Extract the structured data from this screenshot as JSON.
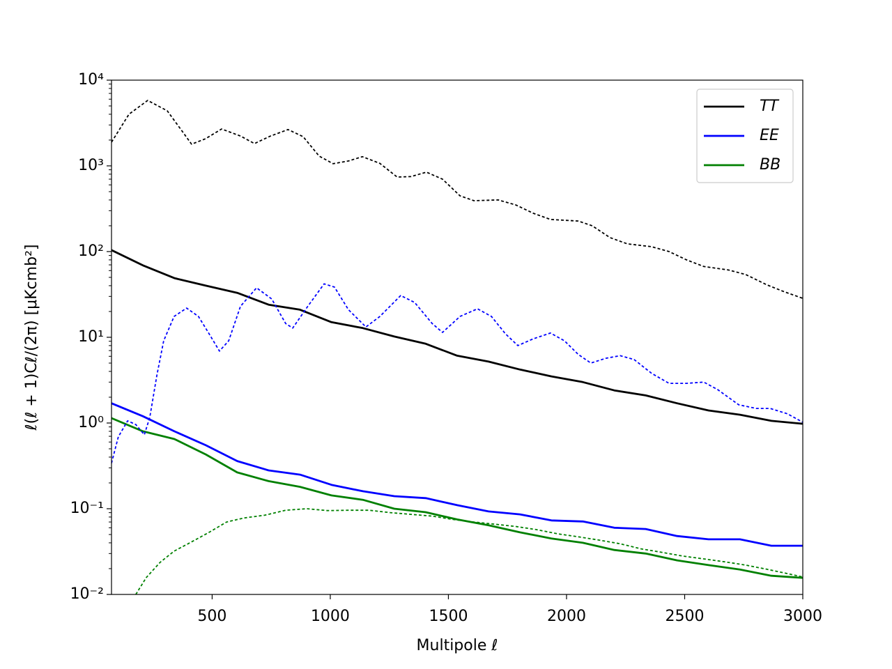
{
  "chart_data": {
    "type": "line",
    "xlabel": "Multipole ℓ",
    "ylabel": "ℓ(ℓ + 1)Cℓ/(2π) [μKcmb²]",
    "xlim": [
      74,
      3000
    ],
    "xticks": [
      500,
      1000,
      1500,
      2000,
      2500,
      3000
    ],
    "ylim": [
      0.01,
      10000
    ],
    "yticks": [
      {
        "value": 0.01,
        "label": "10⁻²"
      },
      {
        "value": 0.1,
        "label": "10⁻¹"
      },
      {
        "value": 1,
        "label": "10⁰"
      },
      {
        "value": 10,
        "label": "10¹"
      },
      {
        "value": 100,
        "label": "10²"
      },
      {
        "value": 1000,
        "label": "10³"
      },
      {
        "value": 10000,
        "label": "10⁴"
      }
    ],
    "log_y": true,
    "legend": "upper right",
    "series": [
      {
        "name": "TT",
        "color": "#000000",
        "linestyle": "solid",
        "x": [
          74,
          207,
          340,
          473,
          606,
          739,
          872,
          1005,
          1138,
          1271,
          1404,
          1537,
          1670,
          1803,
          1936,
          2069,
          2202,
          2335,
          2468,
          2601,
          2734,
          2867,
          3000
        ],
        "values": [
          104,
          69,
          49,
          40,
          33,
          24,
          21,
          15,
          12.8,
          10.2,
          8.4,
          6.1,
          5.2,
          4.2,
          3.5,
          3.0,
          2.4,
          2.1,
          1.7,
          1.4,
          1.25,
          1.06,
          0.98
        ]
      },
      {
        "name": "EE",
        "color": "#0000ff",
        "linestyle": "solid",
        "x": [
          74,
          207,
          340,
          473,
          606,
          739,
          872,
          1005,
          1138,
          1271,
          1404,
          1537,
          1670,
          1803,
          1936,
          2069,
          2202,
          2335,
          2468,
          2601,
          2734,
          2867,
          3000
        ],
        "values": [
          1.7,
          1.2,
          0.8,
          0.55,
          0.36,
          0.28,
          0.25,
          0.19,
          0.16,
          0.14,
          0.133,
          0.11,
          0.093,
          0.086,
          0.073,
          0.071,
          0.06,
          0.058,
          0.048,
          0.044,
          0.044,
          0.037,
          0.037
        ]
      },
      {
        "name": "BB",
        "color": "#008000",
        "linestyle": "solid",
        "x": [
          74,
          207,
          340,
          473,
          606,
          739,
          872,
          1005,
          1138,
          1271,
          1404,
          1537,
          1670,
          1803,
          1936,
          2069,
          2202,
          2335,
          2468,
          2601,
          2734,
          2867,
          3000
        ],
        "values": [
          1.14,
          0.8,
          0.65,
          0.43,
          0.265,
          0.21,
          0.18,
          0.143,
          0.127,
          0.1,
          0.091,
          0.075,
          0.064,
          0.053,
          0.045,
          0.04,
          0.033,
          0.03,
          0.025,
          0.022,
          0.0195,
          0.0165,
          0.0156
        ]
      },
      {
        "color": "#000000",
        "linestyle": "dotted",
        "x": [
          74,
          148,
          227,
          310,
          375,
          413,
          472,
          540,
          620,
          679,
          747,
          821,
          885,
          953,
          1012,
          1077,
          1136,
          1210,
          1283,
          1342,
          1407,
          1475,
          1549,
          1608,
          1711,
          1785,
          1859,
          1932,
          2050,
          2109,
          2183,
          2257,
          2360,
          2434,
          2508,
          2581,
          2685,
          2758,
          2847,
          2921,
          3000
        ],
        "values": [
          1890,
          4000,
          5800,
          4390,
          2500,
          1790,
          2070,
          2690,
          2230,
          1820,
          2230,
          2650,
          2190,
          1300,
          1060,
          1140,
          1280,
          1070,
          740,
          750,
          845,
          700,
          447,
          392,
          400,
          350,
          280,
          237,
          227,
          200,
          146,
          123,
          114,
          100,
          80,
          67,
          61,
          54,
          41,
          34,
          28.5
        ]
      },
      {
        "color": "#0000ff",
        "linestyle": "dotted",
        "x": [
          74,
          103,
          142,
          177,
          213,
          236,
          266,
          295,
          339,
          392,
          442,
          487,
          531,
          570,
          620,
          688,
          752,
          811,
          841,
          900,
          974,
          1018,
          1077,
          1151,
          1210,
          1298,
          1357,
          1431,
          1475,
          1549,
          1623,
          1682,
          1741,
          1794,
          1859,
          1932,
          1991,
          2050,
          2103,
          2168,
          2227,
          2286,
          2360,
          2434,
          2508,
          2581,
          2640,
          2729,
          2803,
          2862,
          2935,
          3000
        ],
        "values": [
          0.34,
          0.69,
          1.06,
          0.96,
          0.73,
          1.16,
          3.6,
          9.1,
          17.5,
          21.9,
          17.5,
          11,
          6.9,
          9.1,
          23,
          37.8,
          28,
          14.5,
          12.8,
          22,
          42,
          38.5,
          21,
          13.2,
          17.5,
          30.7,
          25.5,
          14.5,
          11.4,
          17.5,
          21.5,
          17.5,
          11,
          8,
          9.6,
          11.2,
          9.1,
          6.3,
          5,
          5.7,
          6.1,
          5.5,
          3.8,
          2.9,
          2.9,
          3.0,
          2.45,
          1.63,
          1.48,
          1.48,
          1.28,
          1.02
        ]
      },
      {
        "color": "#008000",
        "linestyle": "dotted",
        "x": [
          177,
          221,
          280,
          339,
          413,
          487,
          561,
          634,
          723,
          811,
          900,
          988,
          1077,
          1165,
          1254,
          1342,
          1431,
          1519,
          1608,
          1696,
          1785,
          1873,
          1962,
          2050,
          2139,
          2227,
          2316,
          2404,
          2493,
          2581,
          2670,
          2758,
          2847,
          2935,
          3000
        ],
        "values": [
          0.01,
          0.0157,
          0.0237,
          0.032,
          0.041,
          0.053,
          0.07,
          0.078,
          0.084,
          0.096,
          0.1,
          0.095,
          0.096,
          0.096,
          0.09,
          0.086,
          0.082,
          0.075,
          0.07,
          0.066,
          0.062,
          0.057,
          0.051,
          0.047,
          0.043,
          0.039,
          0.034,
          0.031,
          0.028,
          0.026,
          0.024,
          0.022,
          0.0197,
          0.0175,
          0.016
        ]
      }
    ]
  }
}
